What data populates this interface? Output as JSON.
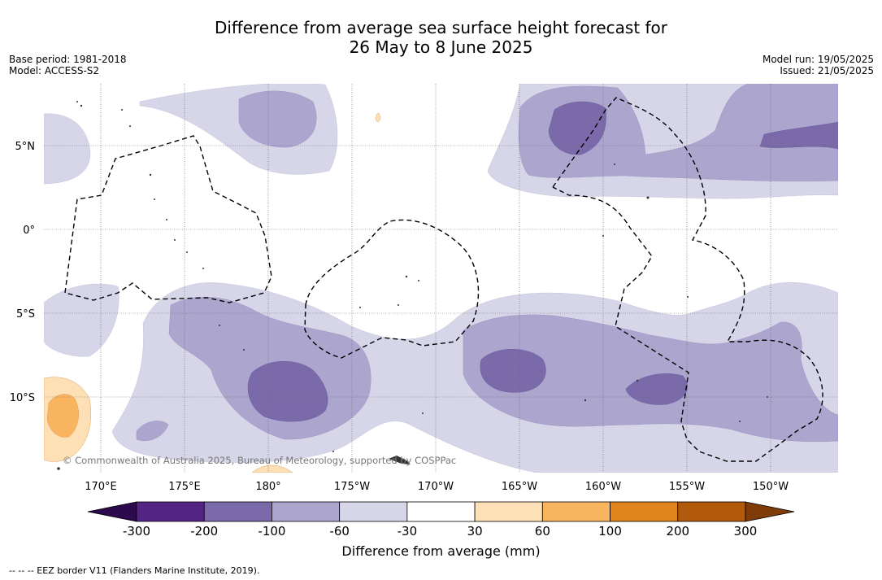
{
  "title_line1": "Difference from average sea surface height forecast for",
  "title_line2": "26 May to 8 June 2025",
  "base_period": "Base period: 1981-2018",
  "model": "Model: ACCESS-S2",
  "model_run": "Model run: 19/05/2025",
  "issued": "Issued: 21/05/2025",
  "lat_labels": [
    "5°N",
    "0°",
    "5°S",
    "10°S"
  ],
  "lon_labels": [
    "170°E",
    "175°E",
    "180°",
    "175°W",
    "170°W",
    "165°W",
    "160°W",
    "155°W",
    "150°W"
  ],
  "copyright": "© Commonwealth of Australia 2025, Bureau of Meteorology, supported by COSPPac",
  "colorbar": {
    "ticks": [
      "-300",
      "-200",
      "-100",
      "-60",
      "-30",
      "30",
      "60",
      "100",
      "200",
      "300"
    ],
    "colors": [
      "#552586",
      "#7b6aa9",
      "#aca6cf",
      "#d6d6e8",
      "#ffffff",
      "#fde0b5",
      "#f9b460",
      "#e0841b",
      "#b15a0b"
    ],
    "low_extend_color": "#2d0a4e",
    "high_extend_color": "#7f3b08",
    "label": "Difference from average (mm)"
  },
  "footnote": "--  --  -- EEZ border V11 (Flanders Marine Institute, 2019)."
}
